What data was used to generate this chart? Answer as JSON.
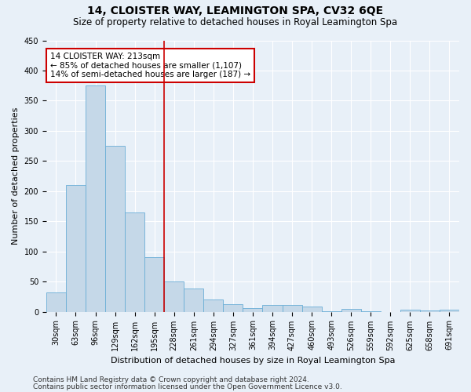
{
  "title": "14, CLOISTER WAY, LEAMINGTON SPA, CV32 6QE",
  "subtitle": "Size of property relative to detached houses in Royal Leamington Spa",
  "xlabel": "Distribution of detached houses by size in Royal Leamington Spa",
  "ylabel": "Number of detached properties",
  "footer_line1": "Contains HM Land Registry data © Crown copyright and database right 2024.",
  "footer_line2": "Contains public sector information licensed under the Open Government Licence v3.0.",
  "bar_labels": [
    "30sqm",
    "63sqm",
    "96sqm",
    "129sqm",
    "162sqm",
    "195sqm",
    "228sqm",
    "261sqm",
    "294sqm",
    "327sqm",
    "361sqm",
    "394sqm",
    "427sqm",
    "460sqm",
    "493sqm",
    "526sqm",
    "559sqm",
    "592sqm",
    "625sqm",
    "658sqm",
    "691sqm"
  ],
  "bar_values": [
    32,
    210,
    375,
    275,
    165,
    90,
    50,
    38,
    20,
    12,
    6,
    11,
    11,
    8,
    1,
    5,
    1,
    0,
    3,
    2,
    3
  ],
  "bar_color": "#c5d8e8",
  "bar_edgecolor": "#6aaed6",
  "vline_x": 5.5,
  "vline_color": "#cc0000",
  "annotation_text": "14 CLOISTER WAY: 213sqm\n← 85% of detached houses are smaller (1,107)\n14% of semi-detached houses are larger (187) →",
  "annotation_box_edgecolor": "#cc0000",
  "annotation_box_facecolor": "white",
  "ylim": [
    0,
    450
  ],
  "yticks": [
    0,
    50,
    100,
    150,
    200,
    250,
    300,
    350,
    400,
    450
  ],
  "bg_color": "#e8f0f8",
  "grid_color": "white",
  "title_fontsize": 10,
  "subtitle_fontsize": 8.5,
  "axis_label_fontsize": 8,
  "tick_fontsize": 7,
  "annotation_fontsize": 7.5,
  "footer_fontsize": 6.5
}
